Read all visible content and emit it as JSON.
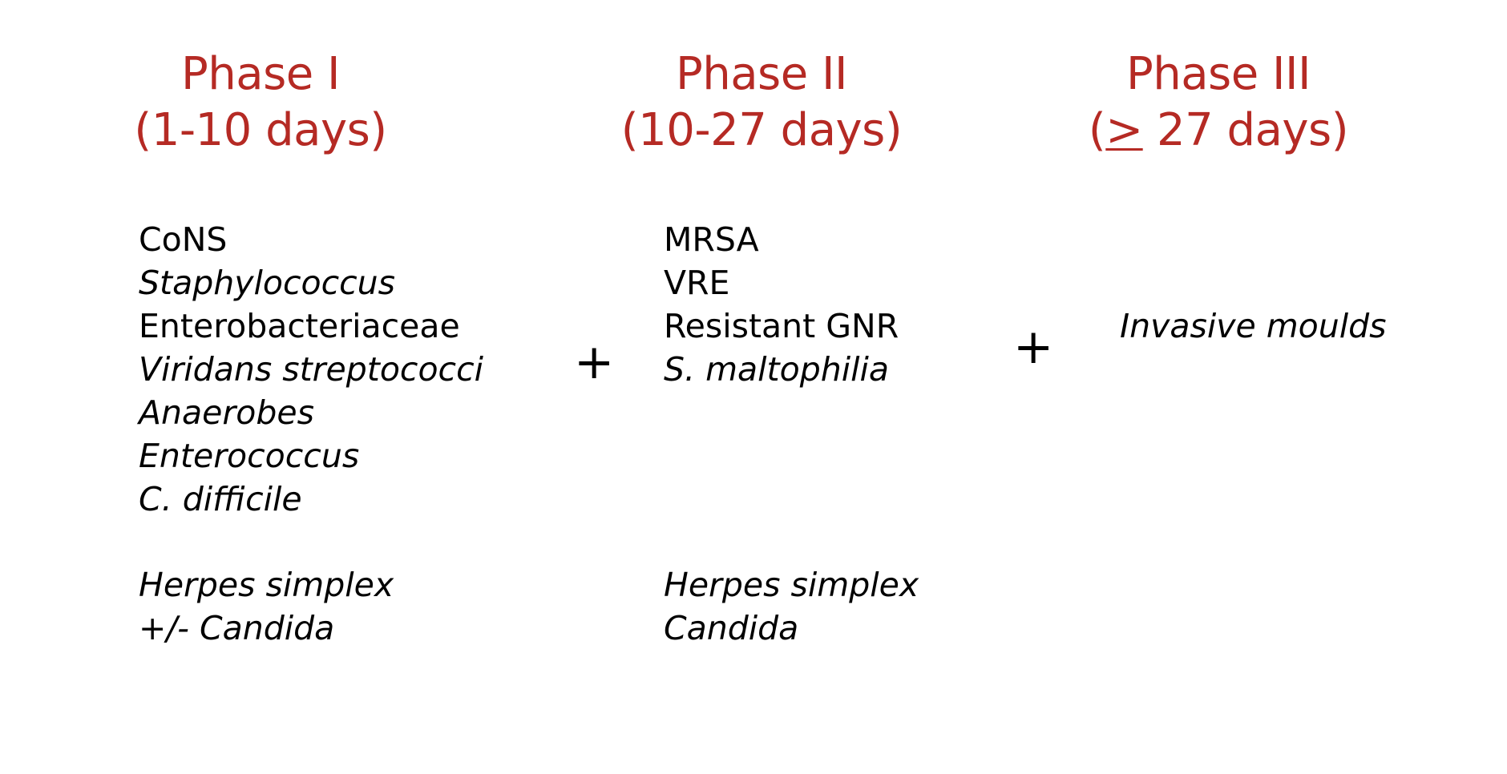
{
  "phases": [
    {
      "title": "Phase I",
      "duration": "(1-10 days)",
      "organisms": [
        {
          "text": "CoNS",
          "italic": false
        },
        {
          "text": "Staphylococcus",
          "italic": true
        },
        {
          "text": "Enterobacteriaceae",
          "italic": false
        },
        {
          "text": "Viridans streptococci",
          "italic": true
        },
        {
          "text": "Anaerobes",
          "italic": true
        },
        {
          "text": "Enterococcus",
          "italic": true
        },
        {
          "text": "C. difficile",
          "italic": true
        }
      ],
      "other_pathogens": [
        {
          "text": "Herpes simplex",
          "italic": true
        },
        {
          "text": "+/- Candida",
          "italic": true
        }
      ]
    },
    {
      "title": "Phase II",
      "duration": "(10-27 days)",
      "organisms": [
        {
          "text": "MRSA",
          "italic": false
        },
        {
          "text": "VRE",
          "italic": false
        },
        {
          "text": "Resistant GNR",
          "italic": false
        },
        {
          "text": "S. maltophilia",
          "italic": true
        }
      ],
      "other_pathogens": [
        {
          "text": "Herpes simplex",
          "italic": true
        },
        {
          "text": "Candida",
          "italic": true
        }
      ]
    },
    {
      "title": "Phase III",
      "duration_open": "(",
      "duration_symbol": ">",
      "duration_rest": " 27 days)",
      "organisms": [
        {
          "text": "Invasive moulds",
          "italic": true
        }
      ]
    }
  ],
  "connector_symbol": "+",
  "colors": {
    "header": "#b52a24",
    "body_text": "#000000",
    "background": "#ffffff"
  }
}
